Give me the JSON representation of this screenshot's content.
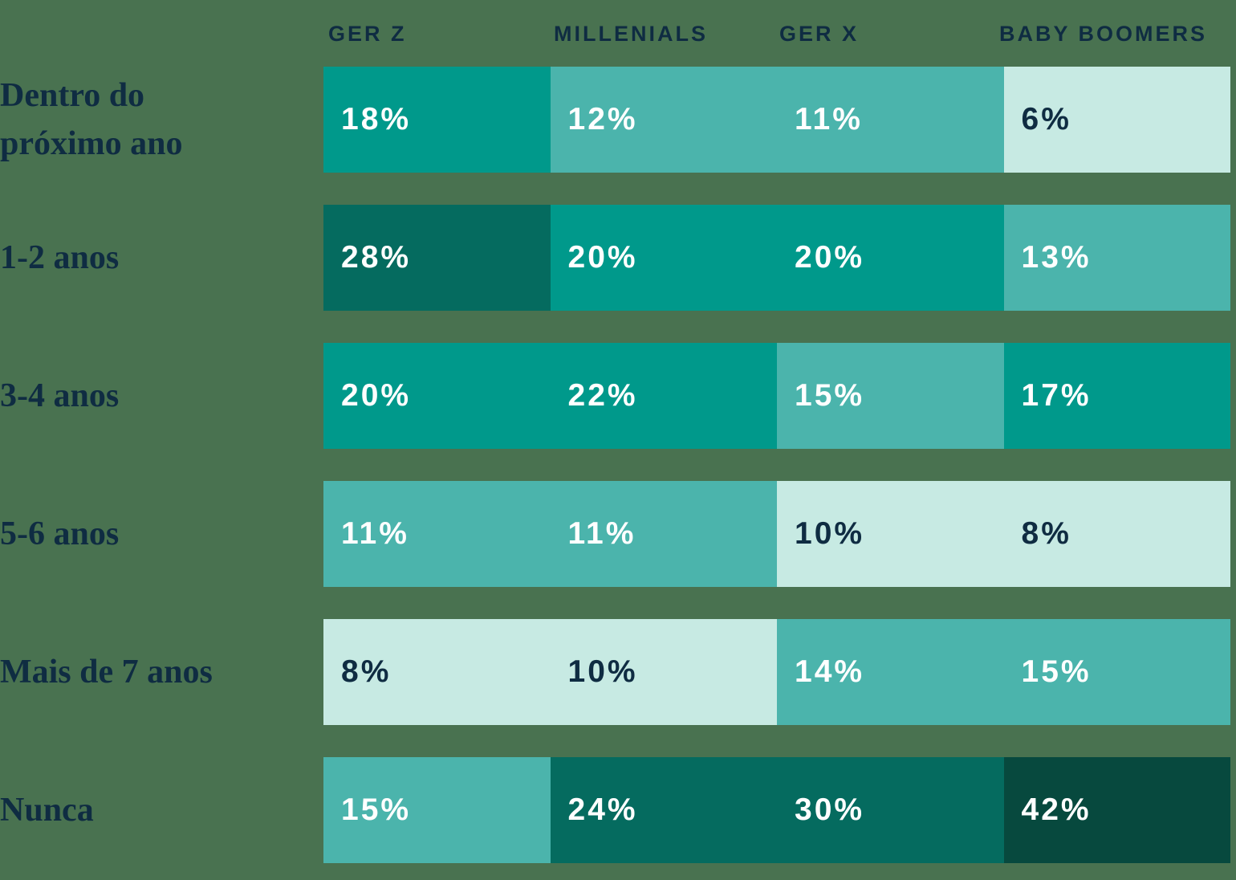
{
  "palette": {
    "background": "#497250",
    "heading_text": "#0F2C42",
    "cell_text_light": "#FFFFFF",
    "cell_text_dark": "#0F2C42",
    "color_scale": [
      {
        "max": 10,
        "bg": "#C7EAE3",
        "text": "#0F2C42"
      },
      {
        "max": 16,
        "bg": "#4BB4AC",
        "text": "#FFFFFF"
      },
      {
        "max": 23,
        "bg": "#00998B",
        "text": "#FFFFFF"
      },
      {
        "max": 31,
        "bg": "#056B5F",
        "text": "#FFFFFF"
      },
      {
        "max": 100,
        "bg": "#07493E",
        "text": "#FFFFFF"
      }
    ]
  },
  "chart_data": {
    "type": "heatmap",
    "unit": "%",
    "legend": "none",
    "columns": [
      "GER Z",
      "MILLENIALS",
      "GER X",
      "BABY BOOMERS"
    ],
    "rows": [
      {
        "label": "Dentro do\npróximo ano",
        "values": [
          18,
          12,
          11,
          6
        ]
      },
      {
        "label": "1-2 anos",
        "values": [
          28,
          20,
          20,
          13
        ]
      },
      {
        "label": "3-4 anos",
        "values": [
          20,
          22,
          15,
          17
        ]
      },
      {
        "label": "5-6 anos",
        "values": [
          11,
          11,
          10,
          8
        ]
      },
      {
        "label": "Mais de 7 anos",
        "values": [
          8,
          10,
          14,
          15
        ]
      },
      {
        "label": "Nunca",
        "values": [
          15,
          24,
          30,
          42
        ]
      }
    ]
  }
}
